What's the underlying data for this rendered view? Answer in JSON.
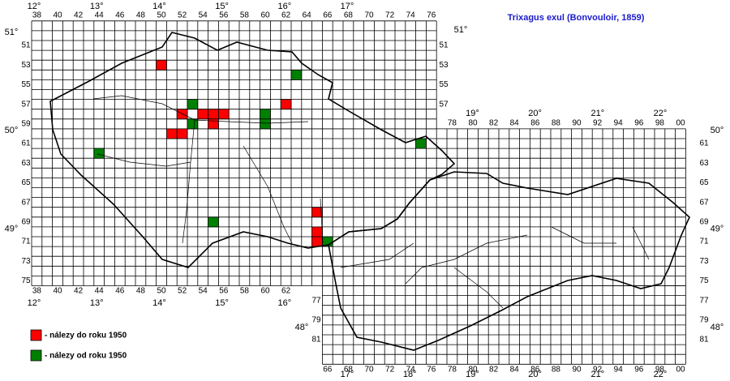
{
  "title": "Trixagus exul (Bonvouloir, 1859)",
  "grid": {
    "columns_top": [
      "38",
      "40",
      "42",
      "44",
      "46",
      "48",
      "50",
      "52",
      "54",
      "56",
      "58",
      "60",
      "62",
      "64",
      "66",
      "68",
      "70",
      "72",
      "74",
      "76"
    ],
    "columns_bottom_left": [
      "38",
      "40",
      "42",
      "44",
      "46",
      "48",
      "50",
      "52",
      "54",
      "56",
      "58",
      "60",
      "62"
    ],
    "columns_middle": [
      "78",
      "80",
      "82",
      "84",
      "86",
      "88",
      "90",
      "92",
      "94",
      "96",
      "98",
      "00"
    ],
    "columns_bottom_right": [
      "66",
      "68",
      "70",
      "72",
      "74",
      "76",
      "78",
      "80",
      "82",
      "84",
      "86",
      "88",
      "90",
      "92",
      "94",
      "96",
      "98",
      "00"
    ],
    "rows_left": [
      "51",
      "53",
      "55",
      "57",
      "59",
      "61",
      "63",
      "65",
      "67",
      "69",
      "71",
      "73",
      "75"
    ],
    "rows_right_upper": [
      "51",
      "53",
      "55",
      "57"
    ],
    "rows_right_lower": [
      "61",
      "63",
      "65",
      "67",
      "69",
      "71",
      "73",
      "75",
      "77",
      "79",
      "81"
    ],
    "rows_left_lower": [
      "77",
      "79",
      "81"
    ]
  },
  "degrees": {
    "lon_top": [
      "12°",
      "13°",
      "14°",
      "15°",
      "16°",
      "17°"
    ],
    "lon_middle": [
      "19°",
      "20°",
      "21°",
      "22°"
    ],
    "lon_bottom_left": [
      "12°",
      "13°",
      "14°",
      "15°",
      "16°"
    ],
    "lon_bottom_right": [
      "17°",
      "18°",
      "19°",
      "20°",
      "21°",
      "22°"
    ],
    "lat_left": [
      "51°",
      "50°",
      "49°"
    ],
    "lat_right": [
      "51°",
      "50°",
      "49°",
      "48°"
    ],
    "lat_left_lower": [
      "48°"
    ]
  },
  "legend": [
    {
      "label": "- nálezy do roku 1950",
      "color": "#ff0000",
      "squares": [
        [
          "50",
          "53"
        ],
        [
          "52",
          "58"
        ],
        [
          "54",
          "58"
        ],
        [
          "55",
          "58"
        ],
        [
          "56",
          "58"
        ],
        [
          "55",
          "59"
        ],
        [
          "51",
          "60"
        ],
        [
          "52",
          "60"
        ],
        [
          "62",
          "57"
        ],
        [
          "65",
          "68"
        ],
        [
          "65",
          "70"
        ],
        [
          "65",
          "71"
        ]
      ]
    },
    {
      "label": "- nálezy od roku 1950",
      "color": "#008000",
      "squares": [
        [
          "53",
          "57"
        ],
        [
          "53",
          "59"
        ],
        [
          "60",
          "58"
        ],
        [
          "60",
          "59"
        ],
        [
          "63",
          "54"
        ],
        [
          "75",
          "61"
        ],
        [
          "44",
          "62"
        ],
        [
          "55",
          "69"
        ],
        [
          "66",
          "71"
        ]
      ]
    }
  ]
}
